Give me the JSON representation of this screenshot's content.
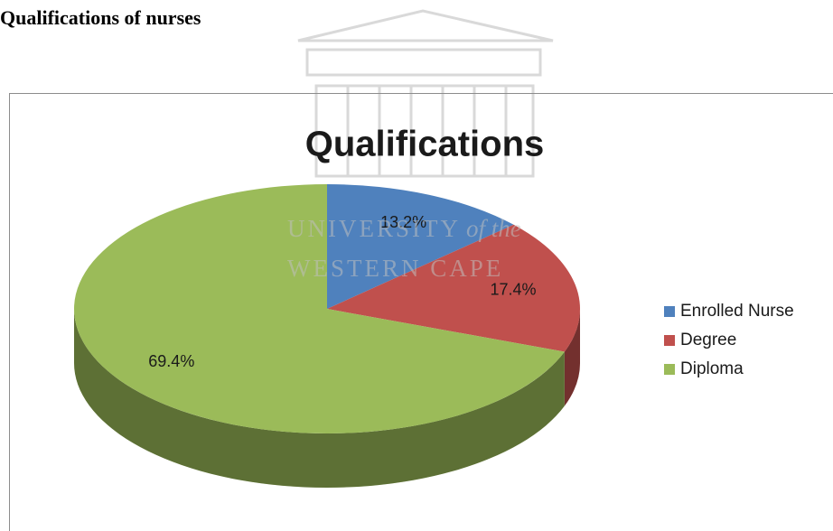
{
  "heading": "Qualifications of nurses",
  "watermark": {
    "line1": "UNIVERSITY",
    "line1_suffix": "of the",
    "line2": "WESTERN CAPE"
  },
  "chart_data": {
    "type": "pie",
    "title": "Qualifications",
    "categories": [
      "Enrolled Nurse",
      "Degree",
      "Diploma"
    ],
    "values": [
      13.2,
      17.4,
      69.4
    ],
    "value_labels": [
      "13.2%",
      "17.4%",
      "69.4%"
    ],
    "colors": [
      "#4f81bd",
      "#c0504d",
      "#9bbb59"
    ],
    "legend": "right"
  }
}
